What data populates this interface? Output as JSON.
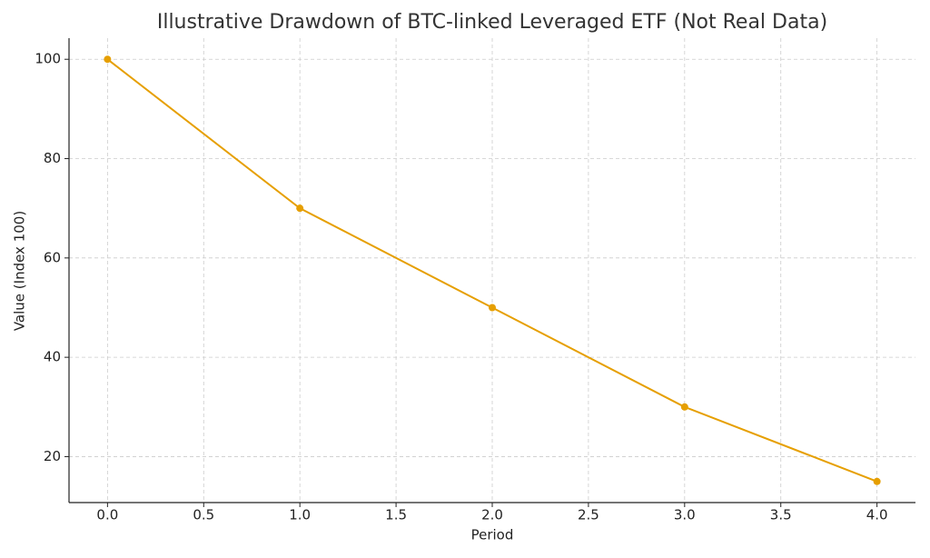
{
  "chart_data": {
    "type": "line",
    "title": "Illustrative Drawdown of BTC-linked Leveraged ETF (Not Real Data)",
    "xlabel": "Period",
    "ylabel": "Value (Index 100)",
    "x": [
      0,
      1,
      2,
      3,
      4
    ],
    "values": [
      100,
      70,
      50,
      30,
      15
    ],
    "color": "#e69f00",
    "xlim": [
      -0.2,
      4.2
    ],
    "xticks": [
      {
        "value": 0,
        "label": "0.0"
      },
      0.5,
      {
        "value": 1,
        "label": "1.0"
      },
      1.5,
      {
        "value": 2,
        "label": "2.0"
      },
      2.5,
      {
        "value": 3,
        "label": "3.0"
      },
      3.5,
      {
        "value": 4,
        "label": "4.0"
      }
    ],
    "ylim": [
      10.75,
      104.25
    ],
    "yticks": [
      20,
      40,
      60,
      80,
      100
    ],
    "grid": true
  }
}
